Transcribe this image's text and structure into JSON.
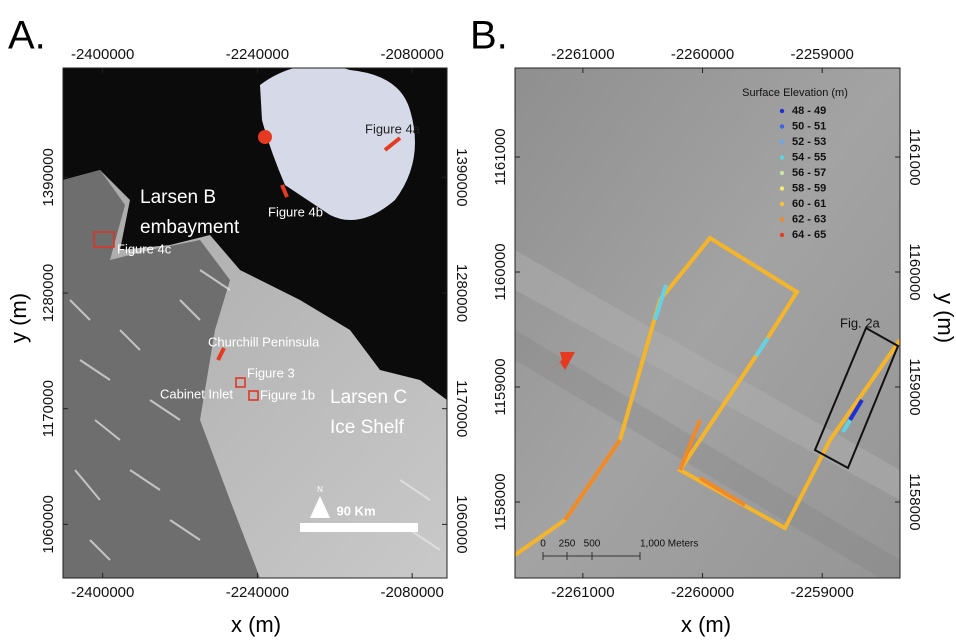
{
  "panels": [
    {
      "label": "A.",
      "x_label": "x (m)",
      "y_label": "y (m)",
      "xlim": [
        -2441000,
        -2044000
      ],
      "ylim": [
        1009000,
        1494000
      ],
      "xticks": [
        -2400000,
        -2240000,
        -2080000
      ],
      "yticks": [
        1060000,
        1170000,
        1280000,
        1390000
      ],
      "annotations": {
        "larsen_b": [
          "Larsen B",
          "embayment"
        ],
        "figure_4c": "Figure 4c",
        "figure_4a": "Figure 4a",
        "figure_4b": "Figure 4b",
        "churchill": "Churchill Peninsula",
        "figure_3": "Figure 3",
        "cabinet": "Cabinet Inlet",
        "figure_1b": "Figure 1b",
        "larsen_c": [
          "Larsen C",
          "Ice Shelf"
        ],
        "north": "N",
        "scale": "90 Km"
      }
    },
    {
      "label": "B.",
      "x_label": "x (m)",
      "y_label": "y (m)",
      "xlim": [
        -2261567,
        -2258350
      ],
      "ylim": [
        1157339,
        1161774
      ],
      "xticks": [
        -2261000,
        -2260000,
        -2259000
      ],
      "yticks": [
        1158000,
        1159000,
        1160000,
        1161000
      ],
      "annotations": {
        "fig_2a": "Fig. 2a",
        "scale": [
          "0",
          "250",
          "500",
          "1,000 Meters"
        ]
      }
    }
  ],
  "legend": {
    "title": "Surface Elevation (m)",
    "entries": [
      {
        "label": "48 - 49",
        "color": "#1f2fd6"
      },
      {
        "label": "50 - 51",
        "color": "#3a66e6"
      },
      {
        "label": "52 - 53",
        "color": "#6fa4ec"
      },
      {
        "label": "54 - 55",
        "color": "#62d2e4"
      },
      {
        "label": "56 - 57",
        "color": "#c6e6a0"
      },
      {
        "label": "58 - 59",
        "color": "#f2ec6a"
      },
      {
        "label": "60 - 61",
        "color": "#f5c23a"
      },
      {
        "label": "62 - 63",
        "color": "#ef8a2a"
      },
      {
        "label": "64 - 65",
        "color": "#e2401c"
      }
    ]
  }
}
